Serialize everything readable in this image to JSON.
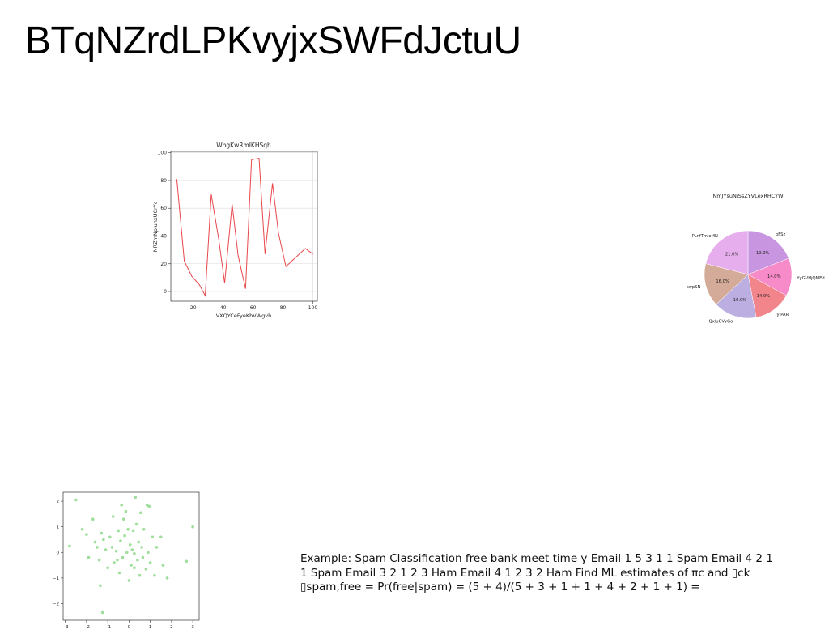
{
  "page": {
    "title": "BTqNZrdLPKvyjxSWFdJctuU",
    "note": "Example: Spam Classification free bank meet time y Email 1 5 3 1 1 Spam Email 4 2 1 1 Spam Email 3 2 1 2 3 Ham Email 4 1 2 3 2 Ham Find ML estimates of πc and ▯ck ▯spam,free = Pr(free|spam) = (5 + 4)/(5 + 3 + 1 + 1 + 4 + 2 + 1 + 1) ="
  },
  "chart_data": [
    {
      "type": "line",
      "title": "WhgKwRmIKHSqh",
      "xlabel": "VXQYCeFyeKbVWgvh",
      "ylabel": "NRZmNpiunxUCrYc",
      "xlim": [
        5,
        103
      ],
      "ylim": [
        -7,
        101
      ],
      "xticks": [
        20,
        40,
        60,
        80,
        100
      ],
      "yticks": [
        0,
        20,
        40,
        60,
        80,
        100
      ],
      "grid": true,
      "colors": {
        "line": "#e8474b"
      },
      "series": [
        {
          "x": [
            9,
            14,
            19,
            24,
            28,
            32,
            37,
            41,
            46,
            50,
            55,
            59,
            64,
            68,
            73,
            77,
            82,
            86,
            91,
            95,
            100
          ],
          "y": [
            81,
            22,
            11,
            5,
            -3,
            70,
            38,
            6,
            63,
            26,
            2,
            95,
            96,
            27,
            78,
            42,
            18,
            22,
            27,
            31,
            27
          ]
        }
      ]
    },
    {
      "type": "pie",
      "title": "NmJYsuNiSsZYVLexRHCYW",
      "labels": [
        "bFSz",
        "YyGVHjQMEd",
        "y PAR",
        "QxluOVvGo",
        "swpSN",
        "PLnfTmioMN"
      ],
      "values": [
        19.0,
        14.0,
        14.0,
        16.0,
        16.0,
        21.0
      ],
      "value_labels": [
        "19.0%",
        "14.0%",
        "14.0%",
        "16.0%",
        "16.0%",
        "21.0%"
      ],
      "colors": [
        "#c896e0",
        "#f78ac8",
        "#f2848b",
        "#bcaee0",
        "#d4ab98",
        "#e6aeed"
      ],
      "start_angle_deg": 90,
      "direction": "clockwise"
    },
    {
      "type": "scatter",
      "xlim": [
        -3.1,
        3.3
      ],
      "ylim": [
        -2.65,
        2.35
      ],
      "xticks": [
        -3,
        -2,
        -1,
        0,
        1,
        2,
        3
      ],
      "yticks": [
        -2,
        -1,
        0,
        1,
        2
      ],
      "grid": false,
      "colors": {
        "points": "#7fd37a"
      },
      "series": [
        {
          "points": [
            [
              -2.5,
              2.05
            ],
            [
              -2.2,
              0.9
            ],
            [
              -2.0,
              0.7
            ],
            [
              -1.9,
              -0.2
            ],
            [
              -1.7,
              1.3
            ],
            [
              -1.6,
              0.4
            ],
            [
              -1.5,
              0.2
            ],
            [
              -1.4,
              -0.3
            ],
            [
              -1.35,
              -1.3
            ],
            [
              -1.3,
              0.75
            ],
            [
              -1.2,
              0.5
            ],
            [
              -1.1,
              0.1
            ],
            [
              -1.0,
              -0.6
            ],
            [
              -0.9,
              0.6
            ],
            [
              -0.8,
              0.2
            ],
            [
              -0.75,
              1.4
            ],
            [
              -0.7,
              -0.4
            ],
            [
              -0.6,
              0.05
            ],
            [
              -0.5,
              0.85
            ],
            [
              -0.45,
              -0.8
            ],
            [
              -0.4,
              0.45
            ],
            [
              -0.35,
              1.85
            ],
            [
              -0.3,
              -0.2
            ],
            [
              -0.25,
              1.3
            ],
            [
              -0.2,
              0.65
            ],
            [
              -0.1,
              0.0
            ],
            [
              -0.05,
              0.9
            ],
            [
              0.0,
              -1.1
            ],
            [
              0.05,
              0.3
            ],
            [
              0.1,
              -0.5
            ],
            [
              0.15,
              0.1
            ],
            [
              0.2,
              0.85
            ],
            [
              0.25,
              -0.6
            ],
            [
              0.3,
              2.15
            ],
            [
              0.35,
              1.1
            ],
            [
              0.4,
              -0.3
            ],
            [
              0.45,
              0.4
            ],
            [
              0.5,
              -0.9
            ],
            [
              0.55,
              1.55
            ],
            [
              0.6,
              0.2
            ],
            [
              0.65,
              -0.2
            ],
            [
              0.7,
              0.9
            ],
            [
              0.8,
              -0.65
            ],
            [
              0.85,
              1.85
            ],
            [
              0.9,
              0.0
            ],
            [
              1.0,
              -0.4
            ],
            [
              1.1,
              0.6
            ],
            [
              1.2,
              -0.9
            ],
            [
              1.3,
              0.2
            ],
            [
              1.5,
              0.6
            ],
            [
              1.6,
              -0.5
            ],
            [
              1.8,
              -1.0
            ],
            [
              2.7,
              -0.35
            ],
            [
              3.0,
              1.0
            ],
            [
              -2.8,
              0.25
            ],
            [
              -1.25,
              -2.35
            ],
            [
              -0.15,
              1.6
            ],
            [
              0.95,
              1.8
            ],
            [
              -0.55,
              -0.3
            ],
            [
              0.25,
              -0.05
            ]
          ]
        }
      ]
    }
  ]
}
